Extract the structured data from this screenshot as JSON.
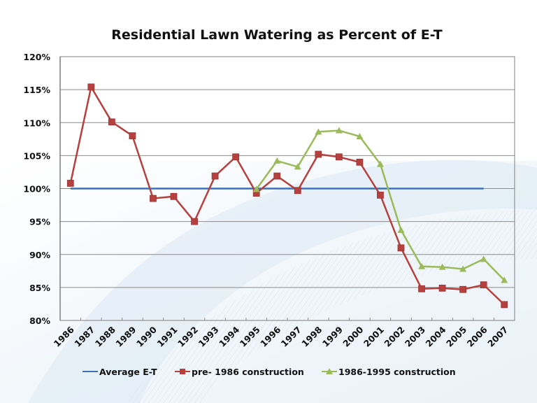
{
  "chart_data": {
    "type": "line",
    "title": "Residential Lawn Watering as Percent of E-T",
    "xlabel": "",
    "ylabel": "",
    "categories": [
      "1986",
      "1987",
      "1988",
      "1989",
      "1990",
      "1991",
      "1992",
      "1993",
      "1994",
      "1995",
      "1996",
      "1997",
      "1998",
      "1999",
      "2000",
      "2001",
      "2002",
      "2003",
      "2004",
      "2005",
      "2006",
      "2007"
    ],
    "ylim": [
      80,
      120
    ],
    "yticks": [
      80,
      85,
      90,
      95,
      100,
      105,
      110,
      115,
      120
    ],
    "ytick_labels": [
      "80%",
      "85%",
      "90%",
      "95%",
      "100%",
      "105%",
      "110%",
      "115%",
      "120%"
    ],
    "grid": true,
    "legend_position": "bottom",
    "series": [
      {
        "name": "Average E-T",
        "color": "#3f6fb5",
        "marker": "none",
        "values": [
          100,
          100,
          100,
          100,
          100,
          100,
          100,
          100,
          100,
          100,
          100,
          100,
          100,
          100,
          100,
          100,
          100,
          100,
          100,
          100,
          100,
          null
        ]
      },
      {
        "name": "pre- 1986 construction",
        "color": "#b5403e",
        "marker": "square",
        "values": [
          100.8,
          115.4,
          110.1,
          108.0,
          98.5,
          98.8,
          95.0,
          101.9,
          104.8,
          99.3,
          101.9,
          99.7,
          105.2,
          104.8,
          104.0,
          99.0,
          91.0,
          84.8,
          84.9,
          84.7,
          85.4,
          82.4
        ]
      },
      {
        "name": "1986-1995 construction",
        "color": "#9bbb59",
        "marker": "triangle",
        "values": [
          null,
          null,
          null,
          null,
          null,
          null,
          null,
          null,
          null,
          99.9,
          104.2,
          103.3,
          108.6,
          108.8,
          107.9,
          103.7,
          93.7,
          88.2,
          88.1,
          87.8,
          89.3,
          86.1
        ]
      }
    ]
  }
}
